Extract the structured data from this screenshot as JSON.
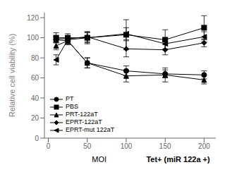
{
  "chart_data": {
    "type": "line",
    "xlabel": "MOI",
    "ylabel": "Relative cell viability (%)",
    "annotations": [
      {
        "text": "Tet+ (miR 122a +)"
      }
    ],
    "x": [
      10,
      25,
      50,
      100,
      150,
      200
    ],
    "series": [
      {
        "name": "PT",
        "color": "black",
        "marker": "circle",
        "values": [
          98,
          97,
          75,
          67,
          64,
          63
        ],
        "errors": [
          3,
          3,
          5,
          5,
          4,
          4
        ]
      },
      {
        "name": "PBS",
        "color": "black",
        "marker": "square",
        "values": [
          100,
          100,
          100,
          103,
          98,
          110
        ],
        "errors": [
          5,
          4,
          6,
          15,
          10,
          12
        ]
      },
      {
        "name": "PRT-122aT",
        "color": "black",
        "marker": "triangle",
        "values": [
          92,
          97,
          75,
          62,
          63,
          58
        ],
        "errors": [
          4,
          4,
          5,
          6,
          7,
          4
        ]
      },
      {
        "name": "EPRT-122aT",
        "color": "black",
        "marker": "diamond",
        "values": [
          99,
          99,
          101,
          89,
          88,
          95
        ],
        "errors": [
          3,
          3,
          5,
          8,
          5,
          4
        ]
      },
      {
        "name": "EPRT-mut 122aT",
        "color": "black",
        "marker": "triangle-left",
        "values": [
          78,
          98,
          100,
          104,
          94,
          101
        ],
        "errors": [
          5,
          4,
          5,
          6,
          5,
          5
        ]
      }
    ],
    "xlim": [
      -5,
      215
    ],
    "xticks": [
      0,
      50,
      100,
      150,
      200
    ],
    "ylim": [
      0,
      125
    ],
    "yticks": [
      0,
      20,
      40,
      60,
      80,
      100,
      120
    ],
    "grid": false,
    "legend": "lower left"
  }
}
